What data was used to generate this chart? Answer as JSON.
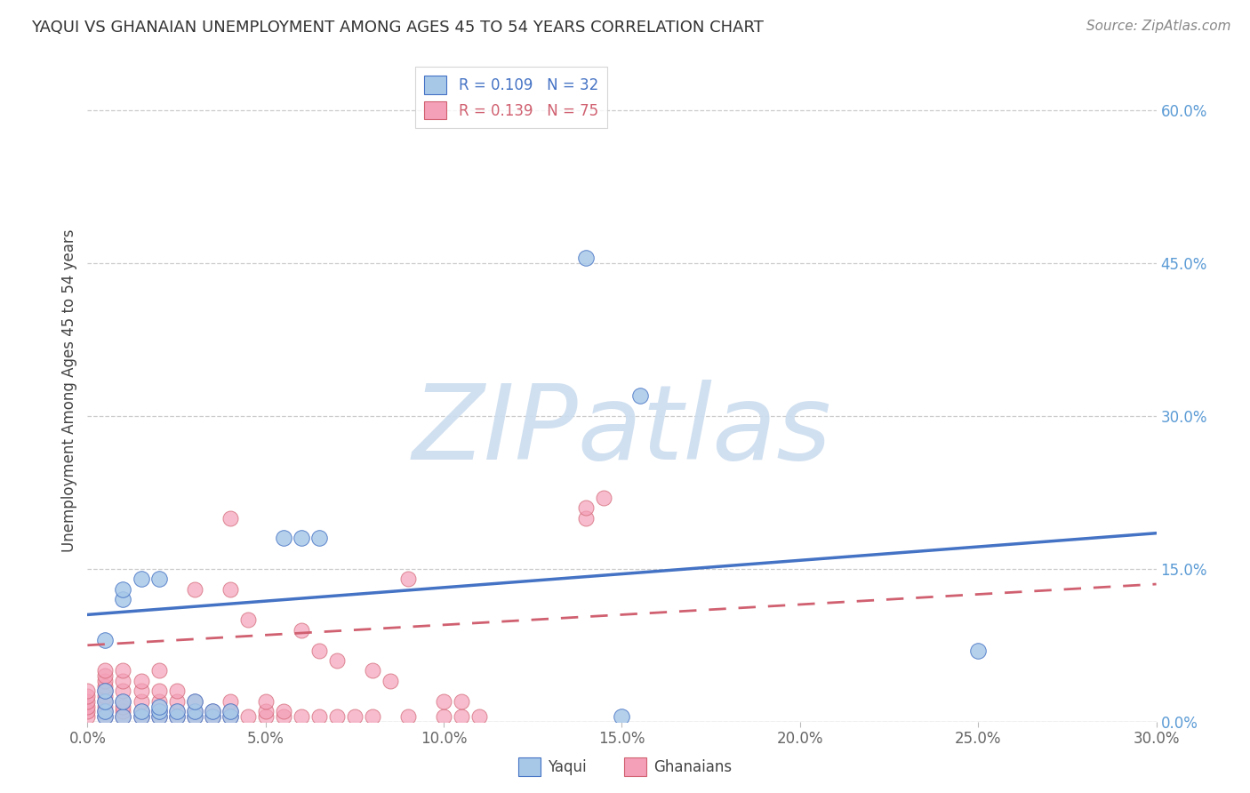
{
  "title": "YAQUI VS GHANAIAN UNEMPLOYMENT AMONG AGES 45 TO 54 YEARS CORRELATION CHART",
  "source": "Source: ZipAtlas.com",
  "ylabel": "Unemployment Among Ages 45 to 54 years",
  "xlim": [
    0.0,
    0.3
  ],
  "ylim": [
    0.0,
    0.65
  ],
  "xticks": [
    0.0,
    0.05,
    0.1,
    0.15,
    0.2,
    0.25,
    0.3
  ],
  "yticks_right": [
    0.0,
    0.15,
    0.3,
    0.45,
    0.6
  ],
  "yaqui_R": 0.109,
  "yaqui_N": 32,
  "ghanaian_R": 0.139,
  "ghanaian_N": 75,
  "yaqui_color": "#a8c8e8",
  "ghanaian_color": "#f4a0b8",
  "trendline_yaqui_color": "#4472c4",
  "trendline_ghanaian_color": "#d06070",
  "watermark": "ZIPatlas",
  "watermark_color": "#ccddef",
  "yaqui_x": [
    0.005,
    0.005,
    0.005,
    0.005,
    0.005,
    0.01,
    0.01,
    0.01,
    0.01,
    0.015,
    0.015,
    0.015,
    0.02,
    0.02,
    0.02,
    0.02,
    0.025,
    0.025,
    0.03,
    0.03,
    0.03,
    0.035,
    0.035,
    0.04,
    0.04,
    0.055,
    0.06,
    0.065,
    0.15,
    0.155,
    0.25,
    0.14
  ],
  "yaqui_y": [
    0.005,
    0.01,
    0.02,
    0.03,
    0.08,
    0.005,
    0.02,
    0.12,
    0.13,
    0.005,
    0.01,
    0.14,
    0.005,
    0.01,
    0.14,
    0.015,
    0.005,
    0.01,
    0.005,
    0.01,
    0.02,
    0.005,
    0.01,
    0.005,
    0.01,
    0.18,
    0.18,
    0.18,
    0.005,
    0.32,
    0.07,
    0.455
  ],
  "ghanaian_x": [
    0.0,
    0.0,
    0.0,
    0.0,
    0.0,
    0.0,
    0.005,
    0.005,
    0.005,
    0.005,
    0.005,
    0.005,
    0.005,
    0.005,
    0.005,
    0.005,
    0.01,
    0.01,
    0.01,
    0.01,
    0.01,
    0.01,
    0.01,
    0.015,
    0.015,
    0.015,
    0.015,
    0.015,
    0.02,
    0.02,
    0.02,
    0.02,
    0.02,
    0.025,
    0.025,
    0.025,
    0.025,
    0.03,
    0.03,
    0.03,
    0.03,
    0.035,
    0.035,
    0.04,
    0.04,
    0.04,
    0.04,
    0.04,
    0.045,
    0.045,
    0.05,
    0.05,
    0.05,
    0.055,
    0.055,
    0.06,
    0.06,
    0.065,
    0.065,
    0.07,
    0.07,
    0.075,
    0.08,
    0.08,
    0.085,
    0.09,
    0.09,
    0.1,
    0.1,
    0.105,
    0.105,
    0.11,
    0.14,
    0.14,
    0.145
  ],
  "ghanaian_y": [
    0.005,
    0.01,
    0.015,
    0.02,
    0.025,
    0.03,
    0.005,
    0.01,
    0.015,
    0.02,
    0.025,
    0.03,
    0.035,
    0.04,
    0.045,
    0.05,
    0.005,
    0.01,
    0.015,
    0.02,
    0.03,
    0.04,
    0.05,
    0.005,
    0.01,
    0.02,
    0.03,
    0.04,
    0.005,
    0.01,
    0.02,
    0.03,
    0.05,
    0.005,
    0.01,
    0.02,
    0.03,
    0.005,
    0.01,
    0.02,
    0.13,
    0.005,
    0.01,
    0.005,
    0.01,
    0.02,
    0.13,
    0.2,
    0.005,
    0.1,
    0.005,
    0.01,
    0.02,
    0.005,
    0.01,
    0.005,
    0.09,
    0.005,
    0.07,
    0.005,
    0.06,
    0.005,
    0.05,
    0.005,
    0.04,
    0.005,
    0.14,
    0.005,
    0.02,
    0.005,
    0.02,
    0.005,
    0.2,
    0.21,
    0.22
  ],
  "title_fontsize": 13,
  "source_fontsize": 11,
  "ylabel_fontsize": 12,
  "tick_label_fontsize": 12,
  "legend_fontsize": 12,
  "background_color": "#ffffff",
  "grid_color": "#cccccc",
  "yaqui_trend_x0": 0.0,
  "yaqui_trend_y0": 0.105,
  "yaqui_trend_x1": 0.3,
  "yaqui_trend_y1": 0.185,
  "ghana_trend_x0": 0.0,
  "ghana_trend_y0": 0.075,
  "ghana_trend_x1": 0.3,
  "ghana_trend_y1": 0.135
}
